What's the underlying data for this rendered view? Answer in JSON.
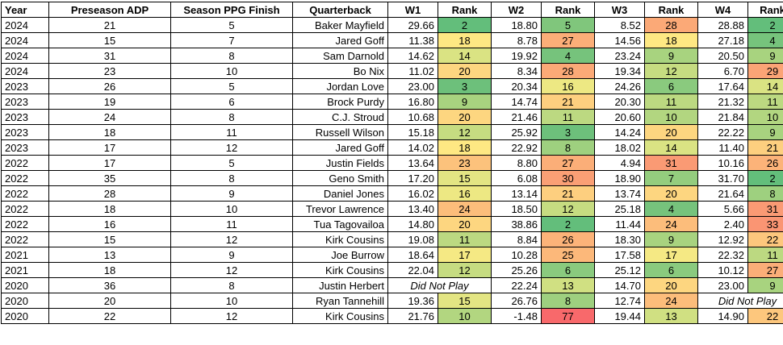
{
  "headers": [
    "Year",
    "Preseason ADP",
    "Season PPG Finish",
    "Quarterback",
    "W1",
    "Rank",
    "W2",
    "Rank",
    "W3",
    "Rank",
    "W4",
    "Rank"
  ],
  "did_not_play_label": "Did Not Play",
  "rank_colors": {
    "1": "#63be7b",
    "2": "#63be7b",
    "3": "#6dc07b",
    "4": "#76c37c",
    "5": "#80c67c",
    "6": "#8aca7e",
    "7": "#94cd7e",
    "8": "#9ed07f",
    "9": "#a8d37f",
    "10": "#b2d680",
    "11": "#bcd981",
    "12": "#c6dc81",
    "13": "#d0e082",
    "14": "#dae383",
    "15": "#e3e583",
    "16": "#ede883",
    "17": "#f5e984",
    "18": "#fee883",
    "19": "#fedf81",
    "20": "#fdd680",
    "21": "#fdcf7f",
    "22": "#fdc77d",
    "23": "#fcc27c",
    "24": "#fcbd7b",
    "25": "#fcb87a",
    "26": "#fcb379",
    "27": "#fbae78",
    "28": "#fba977",
    "29": "#fba476",
    "30": "#fa9f75",
    "31": "#fa9a74",
    "33": "#fa9573",
    "77": "#f8696b"
  },
  "rows": [
    {
      "year": "2024",
      "adp": "21",
      "ppg_finish": "5",
      "qb": "Baker Mayfield",
      "w1": "29.66",
      "r1": "2",
      "w2": "18.80",
      "r2": "5",
      "w3": "8.52",
      "r3": "28",
      "w4": "28.88",
      "r4": "2"
    },
    {
      "year": "2024",
      "adp": "15",
      "ppg_finish": "7",
      "qb": "Jared Goff",
      "w1": "11.38",
      "r1": "18",
      "w2": "8.78",
      "r2": "27",
      "w3": "14.56",
      "r3": "18",
      "w4": "27.18",
      "r4": "4"
    },
    {
      "year": "2024",
      "adp": "31",
      "ppg_finish": "8",
      "qb": "Sam Darnold",
      "w1": "14.62",
      "r1": "14",
      "w2": "19.92",
      "r2": "4",
      "w3": "23.24",
      "r3": "9",
      "w4": "20.50",
      "r4": "9"
    },
    {
      "year": "2024",
      "adp": "23",
      "ppg_finish": "10",
      "qb": "Bo Nix",
      "w1": "11.02",
      "r1": "20",
      "w2": "8.34",
      "r2": "28",
      "w3": "19.34",
      "r3": "12",
      "w4": "6.70",
      "r4": "29"
    },
    {
      "year": "2023",
      "adp": "26",
      "ppg_finish": "5",
      "qb": "Jordan Love",
      "w1": "23.00",
      "r1": "3",
      "w2": "20.34",
      "r2": "16",
      "w3": "24.26",
      "r3": "6",
      "w4": "17.64",
      "r4": "14"
    },
    {
      "year": "2023",
      "adp": "19",
      "ppg_finish": "6",
      "qb": "Brock Purdy",
      "w1": "16.80",
      "r1": "9",
      "w2": "14.74",
      "r2": "21",
      "w3": "20.30",
      "r3": "11",
      "w4": "21.32",
      "r4": "11"
    },
    {
      "year": "2023",
      "adp": "24",
      "ppg_finish": "8",
      "qb": "C.J. Stroud",
      "w1": "10.68",
      "r1": "20",
      "w2": "21.46",
      "r2": "11",
      "w3": "20.60",
      "r3": "10",
      "w4": "21.84",
      "r4": "10"
    },
    {
      "year": "2023",
      "adp": "18",
      "ppg_finish": "11",
      "qb": "Russell Wilson",
      "w1": "15.18",
      "r1": "12",
      "w2": "25.92",
      "r2": "3",
      "w3": "14.24",
      "r3": "20",
      "w4": "22.22",
      "r4": "9"
    },
    {
      "year": "2023",
      "adp": "17",
      "ppg_finish": "12",
      "qb": "Jared Goff",
      "w1": "14.02",
      "r1": "18",
      "w2": "22.92",
      "r2": "8",
      "w3": "18.02",
      "r3": "14",
      "w4": "11.40",
      "r4": "21"
    },
    {
      "year": "2022",
      "adp": "17",
      "ppg_finish": "5",
      "qb": "Justin Fields",
      "w1": "13.64",
      "r1": "23",
      "w2": "8.80",
      "r2": "27",
      "w3": "4.94",
      "r3": "31",
      "w4": "10.16",
      "r4": "26"
    },
    {
      "year": "2022",
      "adp": "35",
      "ppg_finish": "8",
      "qb": "Geno Smith",
      "w1": "17.20",
      "r1": "15",
      "w2": "6.08",
      "r2": "30",
      "w3": "18.90",
      "r3": "7",
      "w4": "31.70",
      "r4": "2"
    },
    {
      "year": "2022",
      "adp": "28",
      "ppg_finish": "9",
      "qb": "Daniel Jones",
      "w1": "16.02",
      "r1": "16",
      "w2": "13.14",
      "r2": "21",
      "w3": "13.74",
      "r3": "20",
      "w4": "21.64",
      "r4": "8"
    },
    {
      "year": "2022",
      "adp": "18",
      "ppg_finish": "10",
      "qb": "Trevor Lawrence",
      "w1": "13.40",
      "r1": "24",
      "w2": "18.50",
      "r2": "12",
      "w3": "25.18",
      "r3": "4",
      "w4": "5.66",
      "r4": "31"
    },
    {
      "year": "2022",
      "adp": "16",
      "ppg_finish": "11",
      "qb": "Tua Tagovailoa",
      "w1": "14.80",
      "r1": "20",
      "w2": "38.86",
      "r2": "2",
      "w3": "11.44",
      "r3": "24",
      "w4": "2.40",
      "r4": "33"
    },
    {
      "year": "2022",
      "adp": "15",
      "ppg_finish": "12",
      "qb": "Kirk Cousins",
      "w1": "19.08",
      "r1": "11",
      "w2": "8.84",
      "r2": "26",
      "w3": "18.30",
      "r3": "9",
      "w4": "12.92",
      "r4": "22"
    },
    {
      "year": "2021",
      "adp": "13",
      "ppg_finish": "9",
      "qb": "Joe Burrow",
      "w1": "18.64",
      "r1": "17",
      "w2": "10.28",
      "r2": "25",
      "w3": "17.58",
      "r3": "17",
      "w4": "22.32",
      "r4": "11"
    },
    {
      "year": "2021",
      "adp": "18",
      "ppg_finish": "12",
      "qb": "Kirk Cousins",
      "w1": "22.04",
      "r1": "12",
      "w2": "25.26",
      "r2": "6",
      "w3": "25.12",
      "r3": "6",
      "w4": "10.12",
      "r4": "27"
    },
    {
      "year": "2020",
      "adp": "36",
      "ppg_finish": "8",
      "qb": "Justin Herbert",
      "w1": null,
      "r1": null,
      "dnp_week": 1,
      "w2": "22.24",
      "r2": "13",
      "w3": "14.70",
      "r3": "20",
      "w4": "23.00",
      "r4": "9"
    },
    {
      "year": "2020",
      "adp": "20",
      "ppg_finish": "10",
      "qb": "Ryan Tannehill",
      "w1": "19.36",
      "r1": "15",
      "w2": "26.76",
      "r2": "8",
      "w3": "12.74",
      "r3": "24",
      "w4": null,
      "r4": null,
      "dnp_week": 4
    },
    {
      "year": "2020",
      "adp": "22",
      "ppg_finish": "12",
      "qb": "Kirk Cousins",
      "w1": "21.76",
      "r1": "10",
      "w2": "-1.48",
      "r2": "77",
      "w3": "19.44",
      "r3": "13",
      "w4": "14.90",
      "r4": "22"
    }
  ]
}
